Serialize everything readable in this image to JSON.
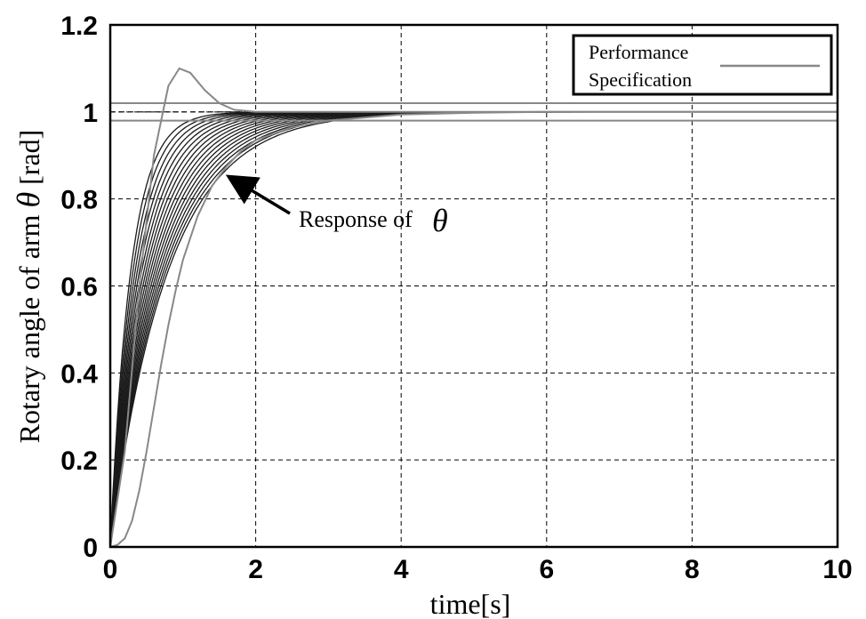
{
  "chart_data": {
    "type": "line",
    "title": "",
    "xlabel": "time[s]",
    "ylabel_prefix": "Rotary angle of arm",
    "ylabel_symbol": "θ",
    "ylabel_suffix": "[rad]",
    "xlim": [
      0,
      10
    ],
    "ylim": [
      0,
      1.2
    ],
    "xticks": [
      0,
      2,
      4,
      6,
      8,
      10
    ],
    "xtick_labels": [
      "0",
      "2",
      "4",
      "6",
      "8",
      "10"
    ],
    "yticks": [
      0,
      0.2,
      0.4,
      0.6,
      0.8,
      1.0,
      1.2
    ],
    "ytick_labels": [
      "0",
      "0.2",
      "0.4",
      "0.6",
      "0.8",
      "1",
      "1.2"
    ],
    "grid": true,
    "grid_style": "dashed",
    "legend": {
      "placement": "top-right",
      "entries": [
        {
          "label_line1": "Performance",
          "label_line2": "Specification",
          "color": "#888888"
        }
      ]
    },
    "annotation": {
      "text": "Response of",
      "symbol": "θ",
      "arrow_target": {
        "x": 1.55,
        "y": 0.86
      }
    },
    "series": [
      {
        "role": "performance-specification",
        "color": "#888888",
        "curves": [
          {
            "kind": "upper-bound",
            "x": [
              0,
              0.2,
              0.4,
              0.6,
              0.8,
              0.95,
              1.1,
              1.3,
              1.5,
              1.7,
              2.0,
              2.5,
              3,
              4,
              5,
              6,
              8,
              10
            ],
            "y": [
              0,
              0.22,
              0.6,
              0.9,
              1.06,
              1.1,
              1.09,
              1.05,
              1.02,
              1.005,
              1.0,
              1.0,
              1.0,
              1.0,
              1.0,
              1.0,
              1.0,
              1.0
            ]
          },
          {
            "kind": "lower-bound",
            "x": [
              0,
              0.1,
              0.2,
              0.3,
              0.4,
              0.5,
              0.6,
              0.7,
              0.8,
              0.9,
              1.0,
              1.2,
              1.4,
              1.6,
              1.8,
              2.0,
              2.5,
              3,
              4,
              5,
              6,
              8,
              10
            ],
            "y": [
              0,
              0.005,
              0.02,
              0.06,
              0.13,
              0.22,
              0.32,
              0.42,
              0.51,
              0.59,
              0.66,
              0.76,
              0.83,
              0.875,
              0.91,
              0.935,
              0.965,
              0.98,
              0.994,
              0.998,
              1.0,
              1.0,
              1.0
            ]
          },
          {
            "kind": "tolerance-upper",
            "x": [
              0,
              10
            ],
            "y": [
              1.02,
              1.02
            ]
          },
          {
            "kind": "tolerance-lower",
            "x": [
              0,
              10
            ],
            "y": [
              0.98,
              0.98
            ]
          }
        ]
      },
      {
        "role": "response-of-theta",
        "color": "#1a1a1a",
        "model": "y = 1 - exp(-t/tau)",
        "tau_values": [
          0.28,
          0.31,
          0.34,
          0.37,
          0.4,
          0.43,
          0.46,
          0.49,
          0.52,
          0.55,
          0.58,
          0.61,
          0.64,
          0.67,
          0.7,
          0.73,
          0.76,
          0.79
        ]
      }
    ],
    "reference_line": {
      "y": 1.0,
      "style": "dashed",
      "color": "#000000"
    }
  }
}
